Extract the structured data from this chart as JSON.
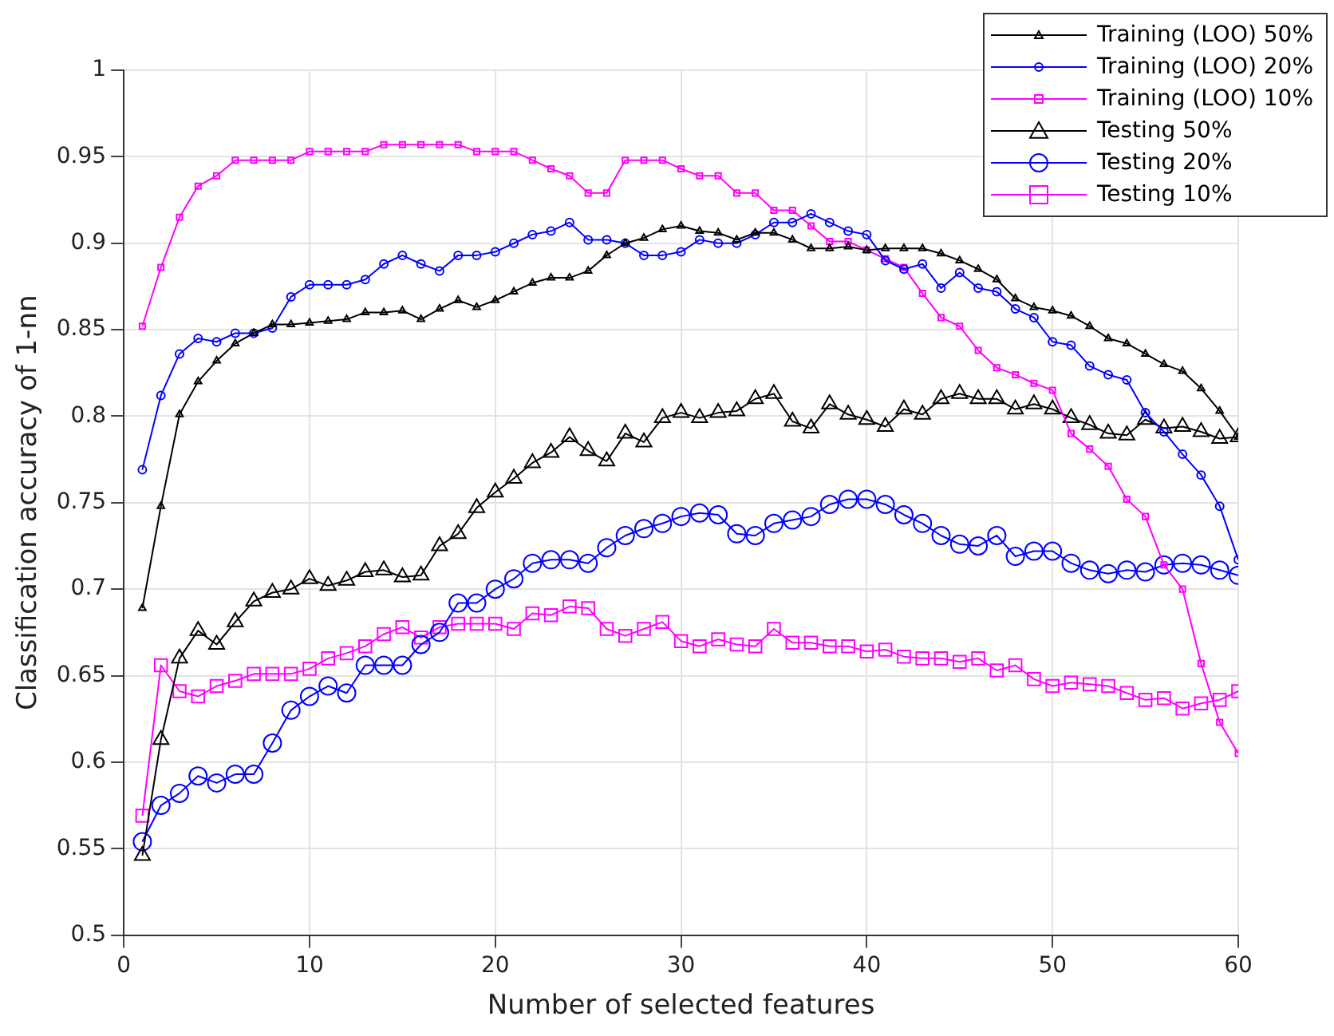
{
  "chart_data": {
    "type": "line",
    "xlabel": "Number of selected features",
    "ylabel": "Classification accuracy of 1-nn",
    "x": [
      1,
      2,
      3,
      4,
      5,
      6,
      7,
      8,
      9,
      10,
      11,
      12,
      13,
      14,
      15,
      16,
      17,
      18,
      19,
      20,
      21,
      22,
      23,
      24,
      25,
      26,
      27,
      28,
      29,
      30,
      31,
      32,
      33,
      34,
      35,
      36,
      37,
      38,
      39,
      40,
      41,
      42,
      43,
      44,
      45,
      46,
      47,
      48,
      49,
      50,
      51,
      52,
      53,
      54,
      55,
      56,
      57,
      58,
      59,
      60
    ],
    "xlim": [
      0,
      60
    ],
    "xticks": [
      0,
      10,
      20,
      30,
      40,
      50,
      60
    ],
    "ylim": [
      0.5,
      1
    ],
    "yticks": [
      0.5,
      0.55,
      0.6,
      0.65,
      0.7,
      0.75,
      0.8,
      0.85,
      0.9,
      0.95,
      1
    ],
    "grid": true,
    "legend": "top right",
    "line_style": "solid",
    "series": [
      {
        "name": "Training (LOO) 50%",
        "color": "#000000",
        "marker": "triangle",
        "values": [
          0.689,
          0.748,
          0.801,
          0.82,
          0.832,
          0.842,
          0.848,
          0.853,
          0.853,
          0.854,
          0.855,
          0.856,
          0.86,
          0.86,
          0.861,
          0.856,
          0.862,
          0.867,
          0.863,
          0.867,
          0.872,
          0.877,
          0.88,
          0.88,
          0.884,
          0.893,
          0.9,
          0.903,
          0.908,
          0.91,
          0.907,
          0.906,
          0.902,
          0.906,
          0.906,
          0.902,
          0.897,
          0.897,
          0.898,
          0.896,
          0.897,
          0.897,
          0.897,
          0.894,
          0.89,
          0.885,
          0.879,
          0.868,
          0.863,
          0.861,
          0.858,
          0.852,
          0.845,
          0.842,
          0.836,
          0.83,
          0.826,
          0.816,
          0.803,
          0.788
        ]
      },
      {
        "name": "Training (LOO) 20%",
        "color": "#0000ff",
        "marker": "circle",
        "values": [
          0.769,
          0.812,
          0.836,
          0.845,
          0.843,
          0.848,
          0.848,
          0.851,
          0.869,
          0.876,
          0.876,
          0.876,
          0.879,
          0.888,
          0.893,
          0.888,
          0.884,
          0.893,
          0.893,
          0.895,
          0.9,
          0.905,
          0.907,
          0.912,
          0.902,
          0.902,
          0.9,
          0.893,
          0.893,
          0.895,
          0.902,
          0.9,
          0.9,
          0.905,
          0.912,
          0.912,
          0.917,
          0.912,
          0.907,
          0.905,
          0.89,
          0.885,
          0.888,
          0.874,
          0.883,
          0.874,
          0.872,
          0.862,
          0.857,
          0.843,
          0.841,
          0.829,
          0.824,
          0.821,
          0.802,
          0.791,
          0.778,
          0.766,
          0.748,
          0.717
        ]
      },
      {
        "name": "Training (LOO) 10%",
        "color": "#ff00ff",
        "marker": "square",
        "values": [
          0.852,
          0.886,
          0.915,
          0.933,
          0.939,
          0.948,
          0.948,
          0.948,
          0.948,
          0.953,
          0.953,
          0.953,
          0.953,
          0.957,
          0.957,
          0.957,
          0.957,
          0.957,
          0.953,
          0.953,
          0.953,
          0.948,
          0.943,
          0.939,
          0.929,
          0.929,
          0.948,
          0.948,
          0.948,
          0.943,
          0.939,
          0.939,
          0.929,
          0.929,
          0.919,
          0.919,
          0.91,
          0.901,
          0.901,
          0.896,
          0.891,
          0.886,
          0.871,
          0.857,
          0.852,
          0.838,
          0.828,
          0.824,
          0.819,
          0.815,
          0.79,
          0.781,
          0.771,
          0.752,
          0.742,
          0.714,
          0.7,
          0.657,
          0.623,
          0.605
        ]
      },
      {
        "name": "Testing 50%",
        "color": "#000000",
        "marker": "triangle",
        "values": [
          0.546,
          0.613,
          0.66,
          0.676,
          0.668,
          0.681,
          0.693,
          0.698,
          0.7,
          0.706,
          0.702,
          0.705,
          0.71,
          0.711,
          0.707,
          0.708,
          0.725,
          0.732,
          0.747,
          0.756,
          0.764,
          0.773,
          0.779,
          0.788,
          0.78,
          0.774,
          0.79,
          0.785,
          0.799,
          0.802,
          0.799,
          0.802,
          0.803,
          0.81,
          0.813,
          0.797,
          0.793,
          0.807,
          0.801,
          0.798,
          0.794,
          0.804,
          0.801,
          0.81,
          0.813,
          0.81,
          0.81,
          0.804,
          0.807,
          0.804,
          0.799,
          0.795,
          0.79,
          0.789,
          0.798,
          0.793,
          0.794,
          0.791,
          0.787,
          0.788
        ]
      },
      {
        "name": "Testing 20%",
        "color": "#0000ff",
        "marker": "circle",
        "values": [
          0.554,
          0.575,
          0.582,
          0.592,
          0.588,
          0.593,
          0.593,
          0.611,
          0.63,
          0.638,
          0.644,
          0.64,
          0.656,
          0.656,
          0.656,
          0.668,
          0.675,
          0.692,
          0.692,
          0.7,
          0.706,
          0.715,
          0.717,
          0.717,
          0.715,
          0.724,
          0.731,
          0.735,
          0.738,
          0.742,
          0.744,
          0.743,
          0.732,
          0.731,
          0.738,
          0.74,
          0.742,
          0.749,
          0.752,
          0.752,
          0.749,
          0.743,
          0.738,
          0.731,
          0.726,
          0.725,
          0.731,
          0.719,
          0.722,
          0.722,
          0.715,
          0.711,
          0.709,
          0.711,
          0.71,
          0.714,
          0.715,
          0.714,
          0.711,
          0.708
        ]
      },
      {
        "name": "Testing 10%",
        "color": "#ff00ff",
        "marker": "square",
        "values": [
          0.569,
          0.656,
          0.641,
          0.638,
          0.644,
          0.647,
          0.651,
          0.651,
          0.651,
          0.654,
          0.66,
          0.663,
          0.667,
          0.674,
          0.678,
          0.672,
          0.678,
          0.68,
          0.68,
          0.68,
          0.677,
          0.686,
          0.685,
          0.69,
          0.689,
          0.677,
          0.673,
          0.677,
          0.681,
          0.67,
          0.667,
          0.671,
          0.668,
          0.667,
          0.677,
          0.669,
          0.669,
          0.667,
          0.667,
          0.664,
          0.665,
          0.661,
          0.66,
          0.66,
          0.658,
          0.66,
          0.653,
          0.656,
          0.648,
          0.644,
          0.646,
          0.645,
          0.644,
          0.64,
          0.636,
          0.637,
          0.631,
          0.634,
          0.636,
          0.641
        ]
      }
    ]
  }
}
